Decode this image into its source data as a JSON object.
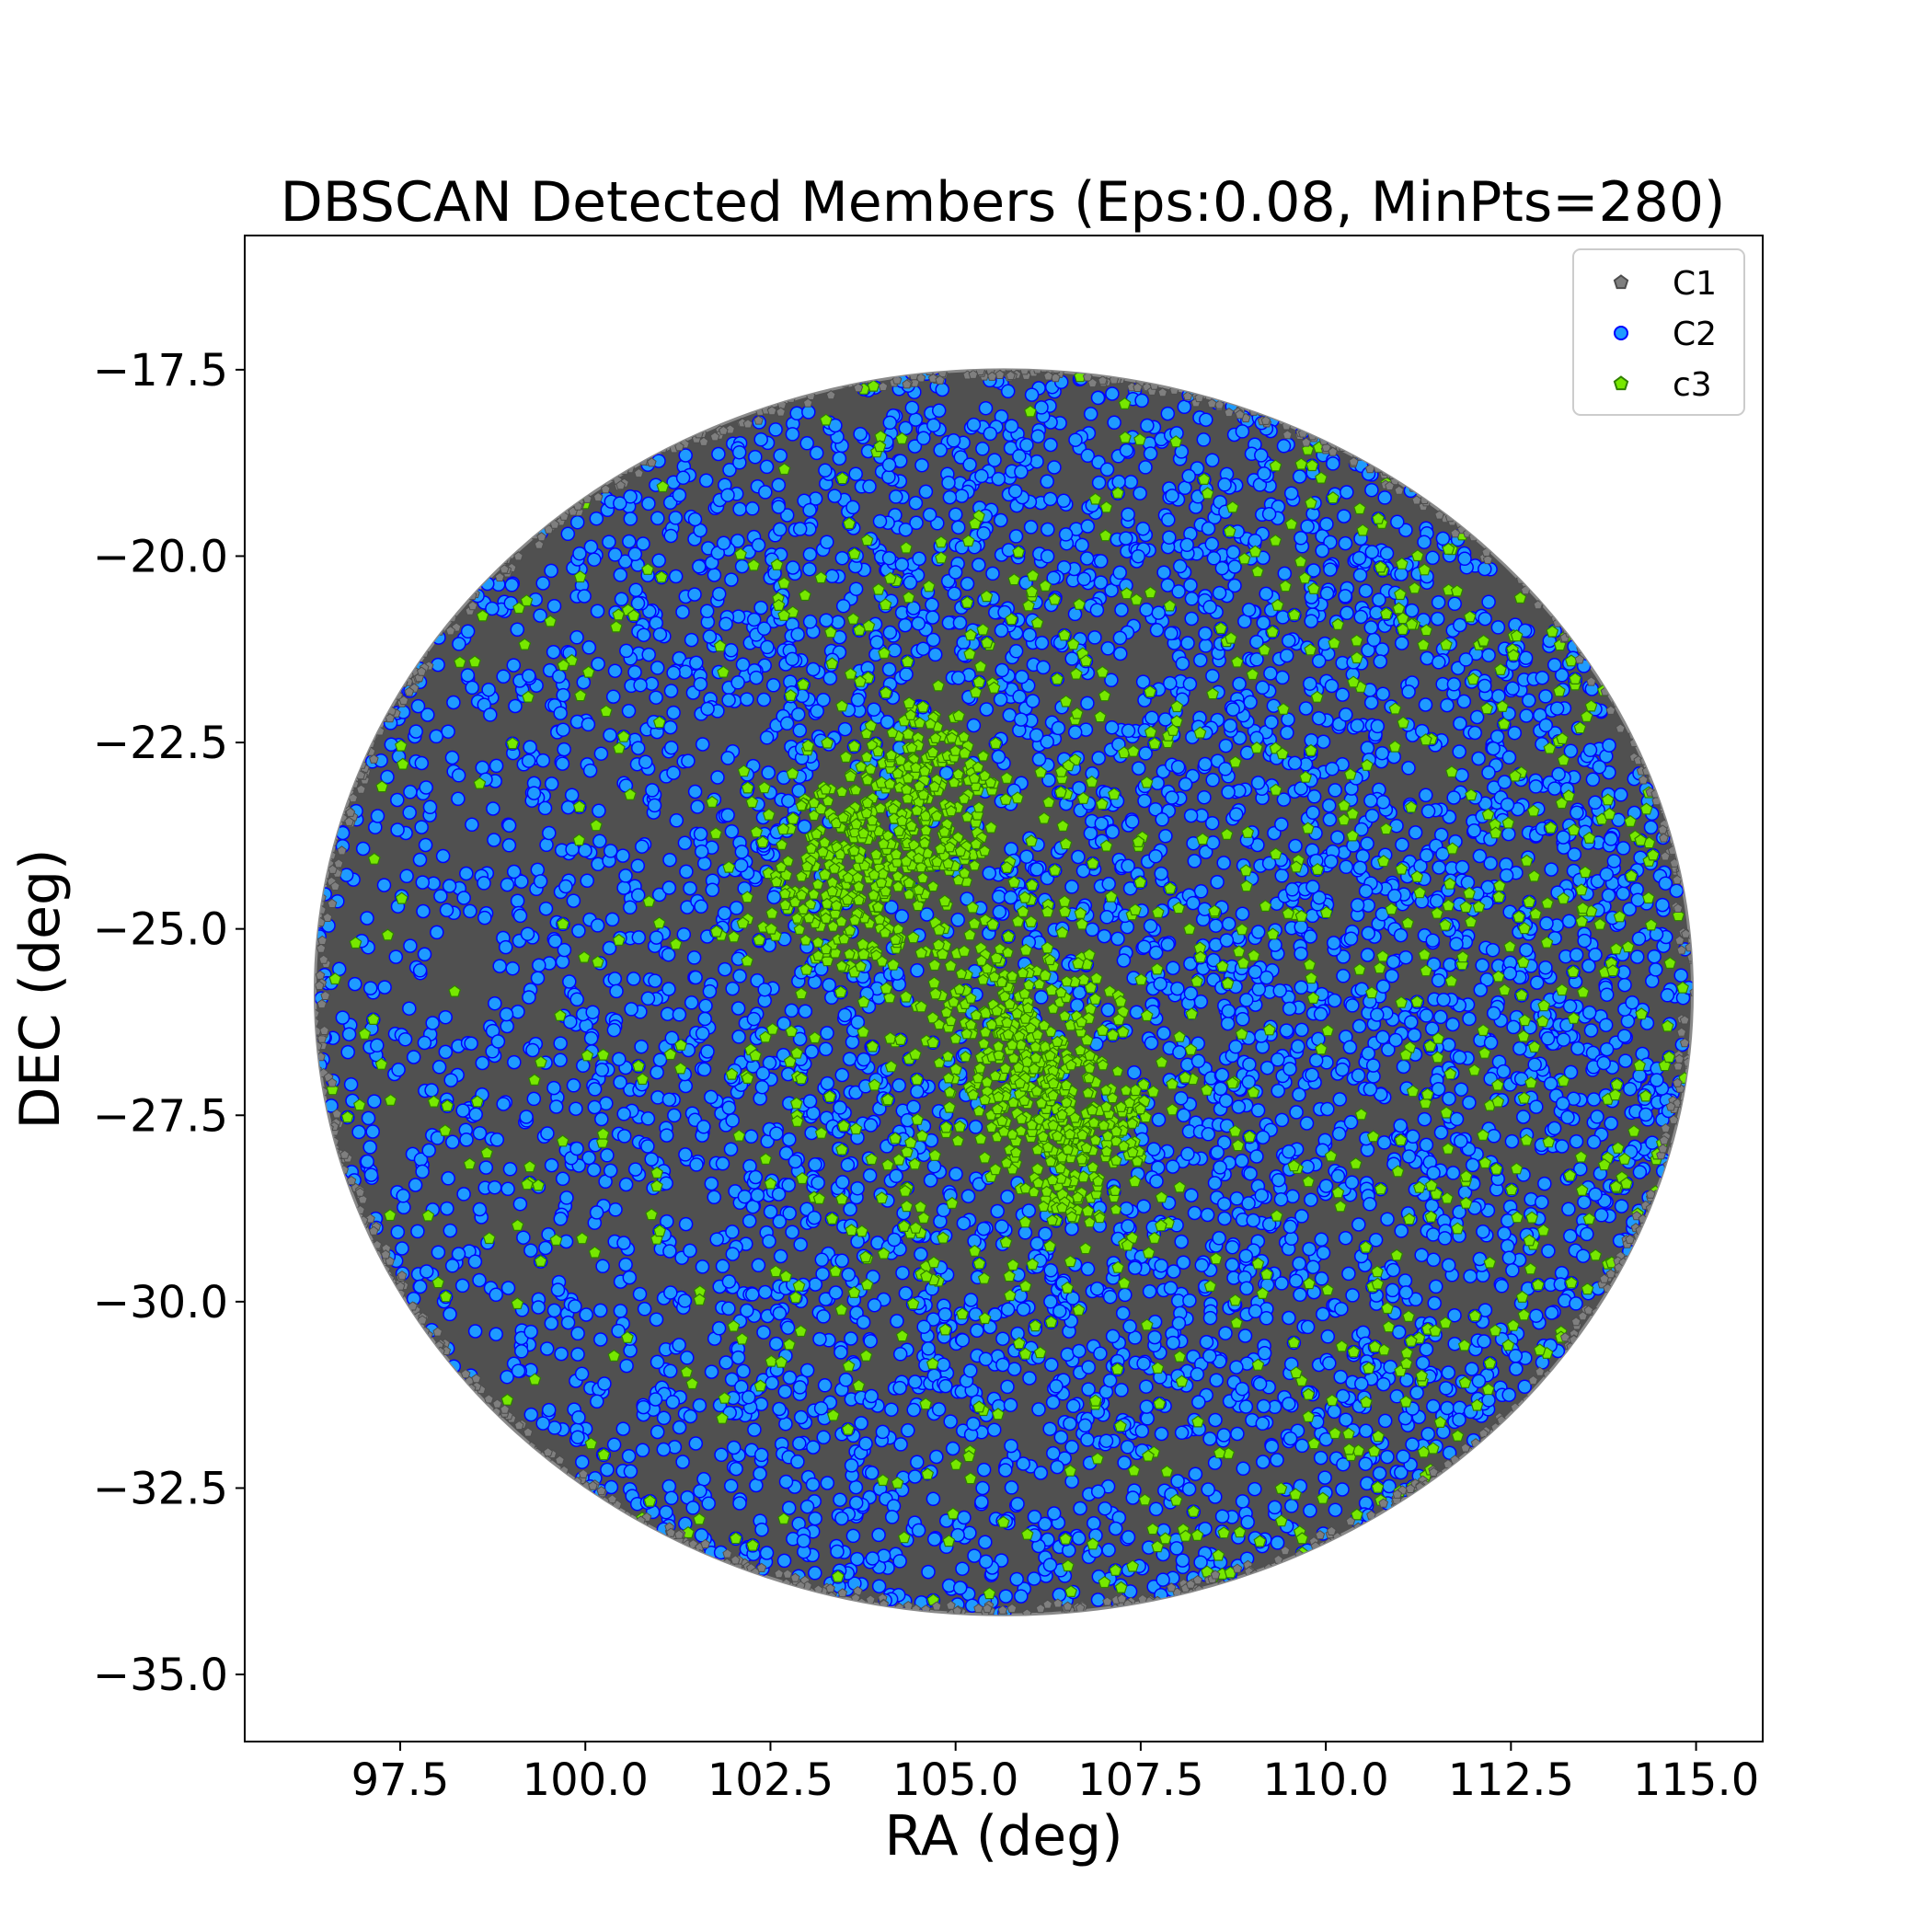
{
  "chart_data": {
    "type": "scatter",
    "title": "DBSCAN Detected Members (Eps:0.08, MinPts=280)",
    "xlabel": "RA (deg)",
    "ylabel": "DEC (deg)",
    "xlim": [
      95.4,
      115.9
    ],
    "ylim": [
      -35.9,
      -15.7
    ],
    "x_ticks": [
      97.5,
      100.0,
      102.5,
      105.0,
      107.5,
      110.0,
      112.5,
      115.0
    ],
    "y_ticks": [
      -17.5,
      -20.0,
      -22.5,
      -25.0,
      -27.5,
      -30.0,
      -32.5,
      -35.0
    ],
    "x_tick_labels": [
      "97.5",
      "100.0",
      "102.5",
      "105.0",
      "107.5",
      "110.0",
      "112.5",
      "115.0"
    ],
    "y_tick_labels": [
      "−17.5",
      "−20.0",
      "−22.5",
      "−25.0",
      "−27.5",
      "−30.0",
      "−32.5",
      "−35.0"
    ],
    "grid": false,
    "legend_position": "top-right",
    "field": {
      "center_ra": 105.65,
      "center_dec": -25.85,
      "radius_ra": 9.3,
      "radius_dec": 8.35
    },
    "series": [
      {
        "name": "C1",
        "marker": "pentagon",
        "color": "#7f7f7f",
        "edge": "#4d4d4d",
        "description_region": "outer rim and west (low RA) side of the field"
      },
      {
        "name": "C2",
        "marker": "circle",
        "color": "#1f9bff",
        "edge": "#0000ff",
        "description_region": "fills most of the field"
      },
      {
        "name": "c3",
        "marker": "pentagon",
        "color": "#77e800",
        "edge": "#2f7f00",
        "description_region": "concentrated around RA 103-107, DEC -21 to -29, and scattered across the east side"
      }
    ],
    "overdensities": [
      {
        "ra": 103.6,
        "dec": -24.3
      },
      {
        "ra": 105.8,
        "dec": -26.5
      },
      {
        "ra": 104.5,
        "dec": -23.3
      },
      {
        "ra": 106.5,
        "dec": -27.8
      }
    ]
  }
}
